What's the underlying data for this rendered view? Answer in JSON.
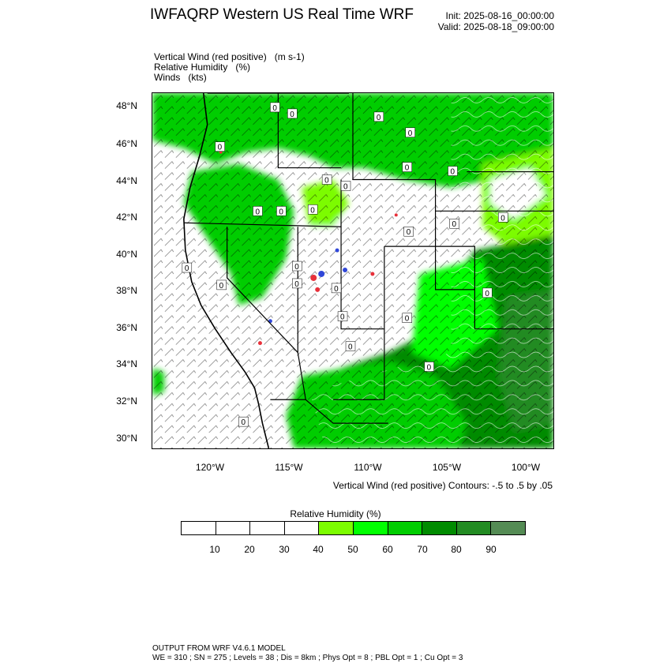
{
  "header": {
    "title": "IWFAQRP Western US Real Time WRF",
    "init": "Init: 2025-08-16_00:00:00",
    "valid": "Valid: 2025-08-18_09:00:00"
  },
  "fields": [
    {
      "name": "Vertical Wind (red positive)",
      "unit": "(m s-1)"
    },
    {
      "name": "Relative Humidity",
      "unit": "(%)"
    },
    {
      "name": "Winds",
      "unit": "(kts)"
    }
  ],
  "map": {
    "lat_ticks": [
      "48°N",
      "46°N",
      "44°N",
      "42°N",
      "40°N",
      "38°N",
      "36°N",
      "34°N",
      "32°N",
      "30°N"
    ],
    "lon_ticks": [
      "120°W",
      "115°W",
      "110°W",
      "105°W",
      "100°W"
    ],
    "contour_labels": [
      "0",
      "0",
      "0",
      "0",
      "0",
      "0",
      "0",
      "0",
      "0",
      "0",
      "0",
      "0",
      "0",
      "0",
      "0",
      "0",
      "0",
      "0",
      "0",
      "0",
      "0",
      "0",
      "0",
      "0",
      "0",
      "0"
    ],
    "colors": {
      "positive_wind": "#e8303a",
      "negative_wind": "#3047d8",
      "contour": "#ffffff",
      "barb": "#000000"
    }
  },
  "contour_note": "Vertical Wind (red positive) Contours: -.5 to .5 by .05",
  "colorbar": {
    "title": "Relative Humidity  (%)",
    "labels": [
      "10",
      "20",
      "30",
      "40",
      "50",
      "60",
      "70",
      "80",
      "90"
    ],
    "colors": [
      "#ffffff",
      "#ffffff",
      "#ffffff",
      "#ffffff",
      "#7cfc00",
      "#00ff00",
      "#00cd00",
      "#008b00",
      "#228b22",
      "#548b54"
    ]
  },
  "footer": {
    "line1": "OUTPUT FROM WRF V4.6.1 MODEL",
    "line2": "WE = 310 ; SN = 275 ; Levels = 38 ; Dis = 8km ; Phys Opt = 8 ; PBL Opt = 1 ; Cu Opt = 3"
  }
}
